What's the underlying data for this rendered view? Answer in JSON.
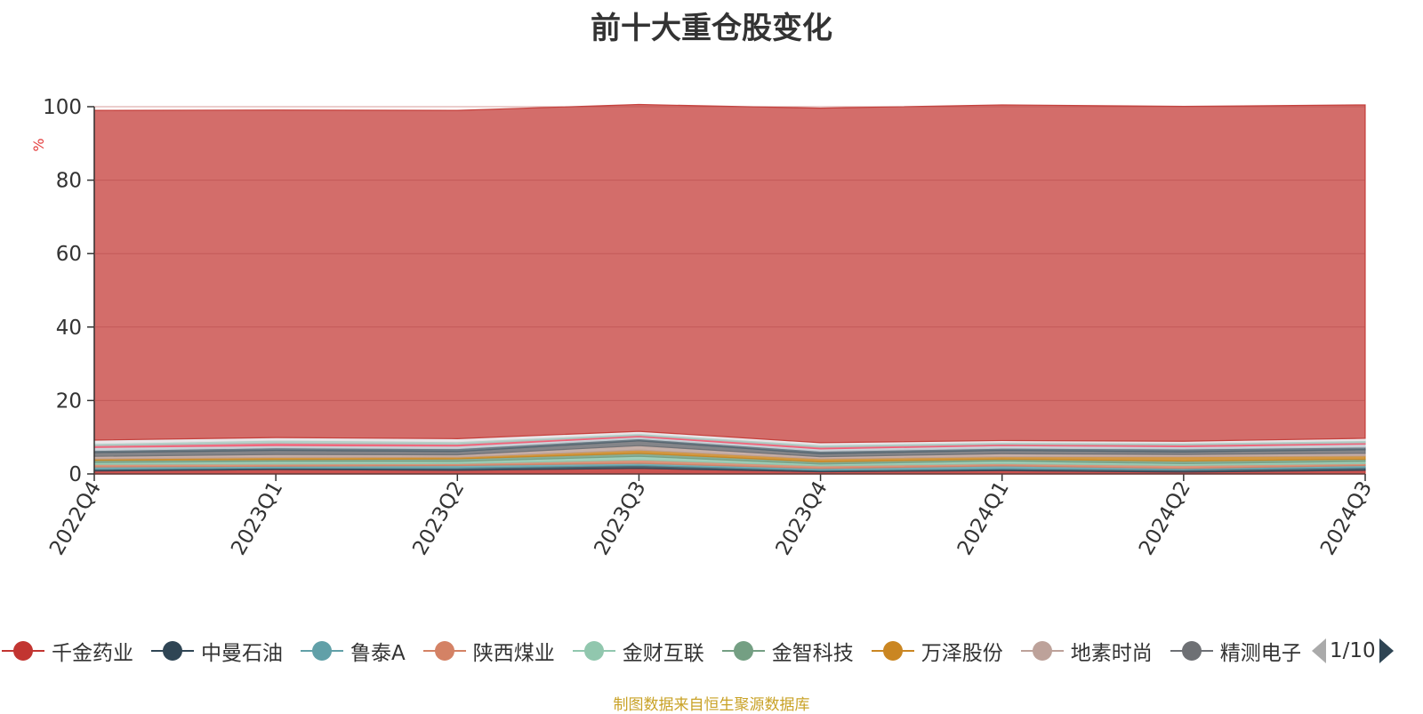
{
  "title": "前十大重仓股变化",
  "footer": "制图数据来自恒生聚源数据库",
  "legend_page": "1/10",
  "chart_data": {
    "type": "area",
    "stacked": true,
    "title": "前十大重仓股变化",
    "ylabel": "%",
    "ylim": [
      0,
      100
    ],
    "yticks": [
      0,
      20,
      40,
      60,
      80,
      100
    ],
    "grid": true,
    "categories": [
      "2022Q4",
      "2023Q1",
      "2023Q2",
      "2023Q3",
      "2023Q4",
      "2024Q1",
      "2024Q2",
      "2024Q3"
    ],
    "series": [
      {
        "name": "千金药业",
        "color": "#c23531",
        "values": [
          0.8,
          1.2,
          1.0,
          1.5,
          0.6,
          0.9,
          0.5,
          1.0
        ]
      },
      {
        "name": "中曼石油",
        "color": "#2f4554",
        "values": [
          0.5,
          0.4,
          0.6,
          0.8,
          0.4,
          0.5,
          0.6,
          0.7
        ]
      },
      {
        "name": "鲁泰A",
        "color": "#61a0a8",
        "values": [
          0.6,
          0.5,
          0.7,
          0.6,
          0.5,
          0.8,
          0.4,
          0.6
        ]
      },
      {
        "name": "陕西煤业",
        "color": "#d48265",
        "values": [
          0.7,
          0.6,
          0.5,
          0.9,
          0.7,
          0.6,
          0.8,
          0.5
        ]
      },
      {
        "name": "金财互联",
        "color": "#91c7ae",
        "values": [
          0.5,
          0.7,
          0.6,
          1.0,
          0.5,
          0.7,
          0.5,
          0.6
        ]
      },
      {
        "name": "金智科技",
        "color": "#749f83",
        "values": [
          0.6,
          0.5,
          0.7,
          0.8,
          0.6,
          0.5,
          0.7,
          0.6
        ]
      },
      {
        "name": "万泽股份",
        "color": "#ca8622",
        "values": [
          0.4,
          0.6,
          0.5,
          0.9,
          0.8,
          0.7,
          1.2,
          0.9
        ]
      },
      {
        "name": "地素时尚",
        "color": "#bda29a",
        "values": [
          0.7,
          0.8,
          0.6,
          1.2,
          0.6,
          0.8,
          0.6,
          0.7
        ]
      },
      {
        "name": "精测电子",
        "color": "#6e7074",
        "values": [
          1.0,
          1.1,
          0.9,
          1.3,
          0.8,
          0.9,
          0.7,
          1.0
        ]
      },
      {
        "name": "",
        "color": "#546570",
        "values": [
          0.6,
          0.7,
          0.8,
          0.6,
          0.7,
          0.6,
          0.8,
          0.7
        ]
      },
      {
        "name": "",
        "color": "#c4ccd3",
        "values": [
          0.8,
          0.6,
          0.7,
          0.5,
          0.6,
          0.7,
          0.6,
          0.8
        ]
      },
      {
        "name": "",
        "color": "#f05b72",
        "values": [
          0.5,
          0.7,
          0.5,
          0.4,
          0.5,
          0.4,
          0.5,
          0.4
        ]
      },
      {
        "name": "",
        "color": "#a9c8c0",
        "values": [
          0.6,
          0.8,
          0.7,
          0.5,
          0.6,
          0.5,
          0.5,
          0.6
        ]
      },
      {
        "name": "",
        "color": "#e8e3e6",
        "values": [
          0.9,
          0.7,
          0.8,
          0.6,
          0.6,
          0.5,
          0.5,
          0.6
        ]
      },
      {
        "name": "",
        "color": "#c23531",
        "values": [
          89.8,
          89.2,
          89.4,
          89.0,
          91.1,
          91.4,
          91.2,
          90.8
        ]
      }
    ]
  }
}
